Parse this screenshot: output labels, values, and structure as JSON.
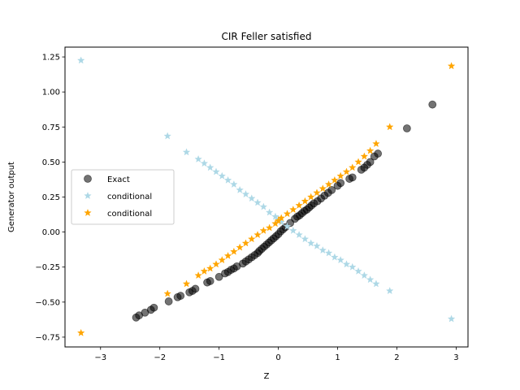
{
  "chart_data": {
    "type": "scatter",
    "title": "CIR Feller satisfied",
    "xlabel": "Z",
    "ylabel": "Generator output",
    "xlim": [
      -3.6,
      3.2
    ],
    "ylim": [
      -0.82,
      1.32
    ],
    "xticks": [
      -3,
      -2,
      -1,
      0,
      1,
      2,
      3
    ],
    "xtick_labels": [
      "−3",
      "−2",
      "−1",
      "0",
      "1",
      "2",
      "3"
    ],
    "yticks": [
      -0.75,
      -0.5,
      -0.25,
      0.0,
      0.25,
      0.5,
      0.75,
      1.0,
      1.25
    ],
    "ytick_labels": [
      "−0.75",
      "−0.50",
      "−0.25",
      "0.00",
      "0.25",
      "0.50",
      "0.75",
      "1.00",
      "1.25"
    ],
    "grid": false,
    "legend_position": "center-left",
    "series": [
      {
        "name": "Exact",
        "marker": "circle",
        "color": "#000000",
        "opacity": 0.55,
        "x": [
          -2.4,
          -2.35,
          -2.25,
          -2.15,
          -2.1,
          -1.85,
          -1.7,
          -1.65,
          -1.5,
          -1.45,
          -1.4,
          -1.2,
          -1.15,
          -1.0,
          -0.9,
          -0.85,
          -0.8,
          -0.75,
          -0.7,
          -0.6,
          -0.55,
          -0.5,
          -0.45,
          -0.4,
          -0.35,
          -0.32,
          -0.28,
          -0.24,
          -0.2,
          -0.16,
          -0.12,
          -0.08,
          -0.04,
          0.0,
          0.04,
          0.08,
          0.12,
          0.2,
          0.28,
          0.32,
          0.36,
          0.4,
          0.44,
          0.48,
          0.52,
          0.56,
          0.6,
          0.66,
          0.72,
          0.78,
          0.84,
          0.9,
          1.0,
          1.05,
          1.2,
          1.25,
          1.4,
          1.45,
          1.5,
          1.55,
          1.62,
          1.68,
          2.17,
          2.6
        ],
        "y": [
          -0.61,
          -0.595,
          -0.575,
          -0.555,
          -0.54,
          -0.495,
          -0.465,
          -0.455,
          -0.43,
          -0.42,
          -0.405,
          -0.36,
          -0.35,
          -0.32,
          -0.295,
          -0.285,
          -0.27,
          -0.26,
          -0.245,
          -0.225,
          -0.21,
          -0.195,
          -0.18,
          -0.165,
          -0.15,
          -0.135,
          -0.12,
          -0.105,
          -0.09,
          -0.075,
          -0.06,
          -0.045,
          -0.03,
          -0.015,
          0.005,
          0.02,
          0.035,
          0.065,
          0.095,
          0.11,
          0.12,
          0.135,
          0.15,
          0.16,
          0.175,
          0.19,
          0.205,
          0.22,
          0.24,
          0.26,
          0.28,
          0.3,
          0.33,
          0.35,
          0.38,
          0.39,
          0.445,
          0.46,
          0.48,
          0.5,
          0.54,
          0.56,
          0.74,
          0.91
        ]
      },
      {
        "name": "conditional",
        "marker": "star",
        "color": "#add8e6",
        "opacity": 1,
        "x": [
          -3.33,
          -1.87,
          -1.55,
          -1.35,
          -1.25,
          -1.15,
          -1.05,
          -0.95,
          -0.85,
          -0.75,
          -0.65,
          -0.55,
          -0.45,
          -0.35,
          -0.25,
          -0.15,
          -0.05,
          0.0,
          0.05,
          0.15,
          0.25,
          0.35,
          0.45,
          0.55,
          0.65,
          0.75,
          0.85,
          0.95,
          1.05,
          1.15,
          1.25,
          1.35,
          1.45,
          1.55,
          1.65,
          1.88,
          2.92
        ],
        "y": [
          1.225,
          0.685,
          0.57,
          0.52,
          0.49,
          0.46,
          0.43,
          0.4,
          0.37,
          0.34,
          0.3,
          0.27,
          0.24,
          0.21,
          0.18,
          0.14,
          0.11,
          0.09,
          0.07,
          0.04,
          0.01,
          -0.02,
          -0.05,
          -0.08,
          -0.1,
          -0.13,
          -0.15,
          -0.18,
          -0.2,
          -0.23,
          -0.25,
          -0.28,
          -0.31,
          -0.34,
          -0.37,
          -0.42,
          -0.62
        ]
      },
      {
        "name": "conditional",
        "marker": "star",
        "color": "#ffa500",
        "opacity": 1,
        "x": [
          -3.33,
          -1.87,
          -1.55,
          -1.35,
          -1.25,
          -1.15,
          -1.05,
          -0.95,
          -0.85,
          -0.75,
          -0.65,
          -0.55,
          -0.45,
          -0.35,
          -0.25,
          -0.15,
          -0.05,
          0.0,
          0.05,
          0.15,
          0.25,
          0.35,
          0.45,
          0.55,
          0.65,
          0.75,
          0.85,
          0.95,
          1.05,
          1.15,
          1.25,
          1.35,
          1.45,
          1.55,
          1.65,
          1.88,
          2.92
        ],
        "y": [
          -0.72,
          -0.44,
          -0.37,
          -0.31,
          -0.28,
          -0.26,
          -0.23,
          -0.2,
          -0.17,
          -0.14,
          -0.11,
          -0.08,
          -0.05,
          -0.02,
          0.01,
          0.03,
          0.06,
          0.08,
          0.1,
          0.13,
          0.16,
          0.19,
          0.22,
          0.25,
          0.28,
          0.31,
          0.34,
          0.37,
          0.4,
          0.43,
          0.46,
          0.5,
          0.54,
          0.58,
          0.63,
          0.75,
          1.185
        ]
      }
    ]
  }
}
